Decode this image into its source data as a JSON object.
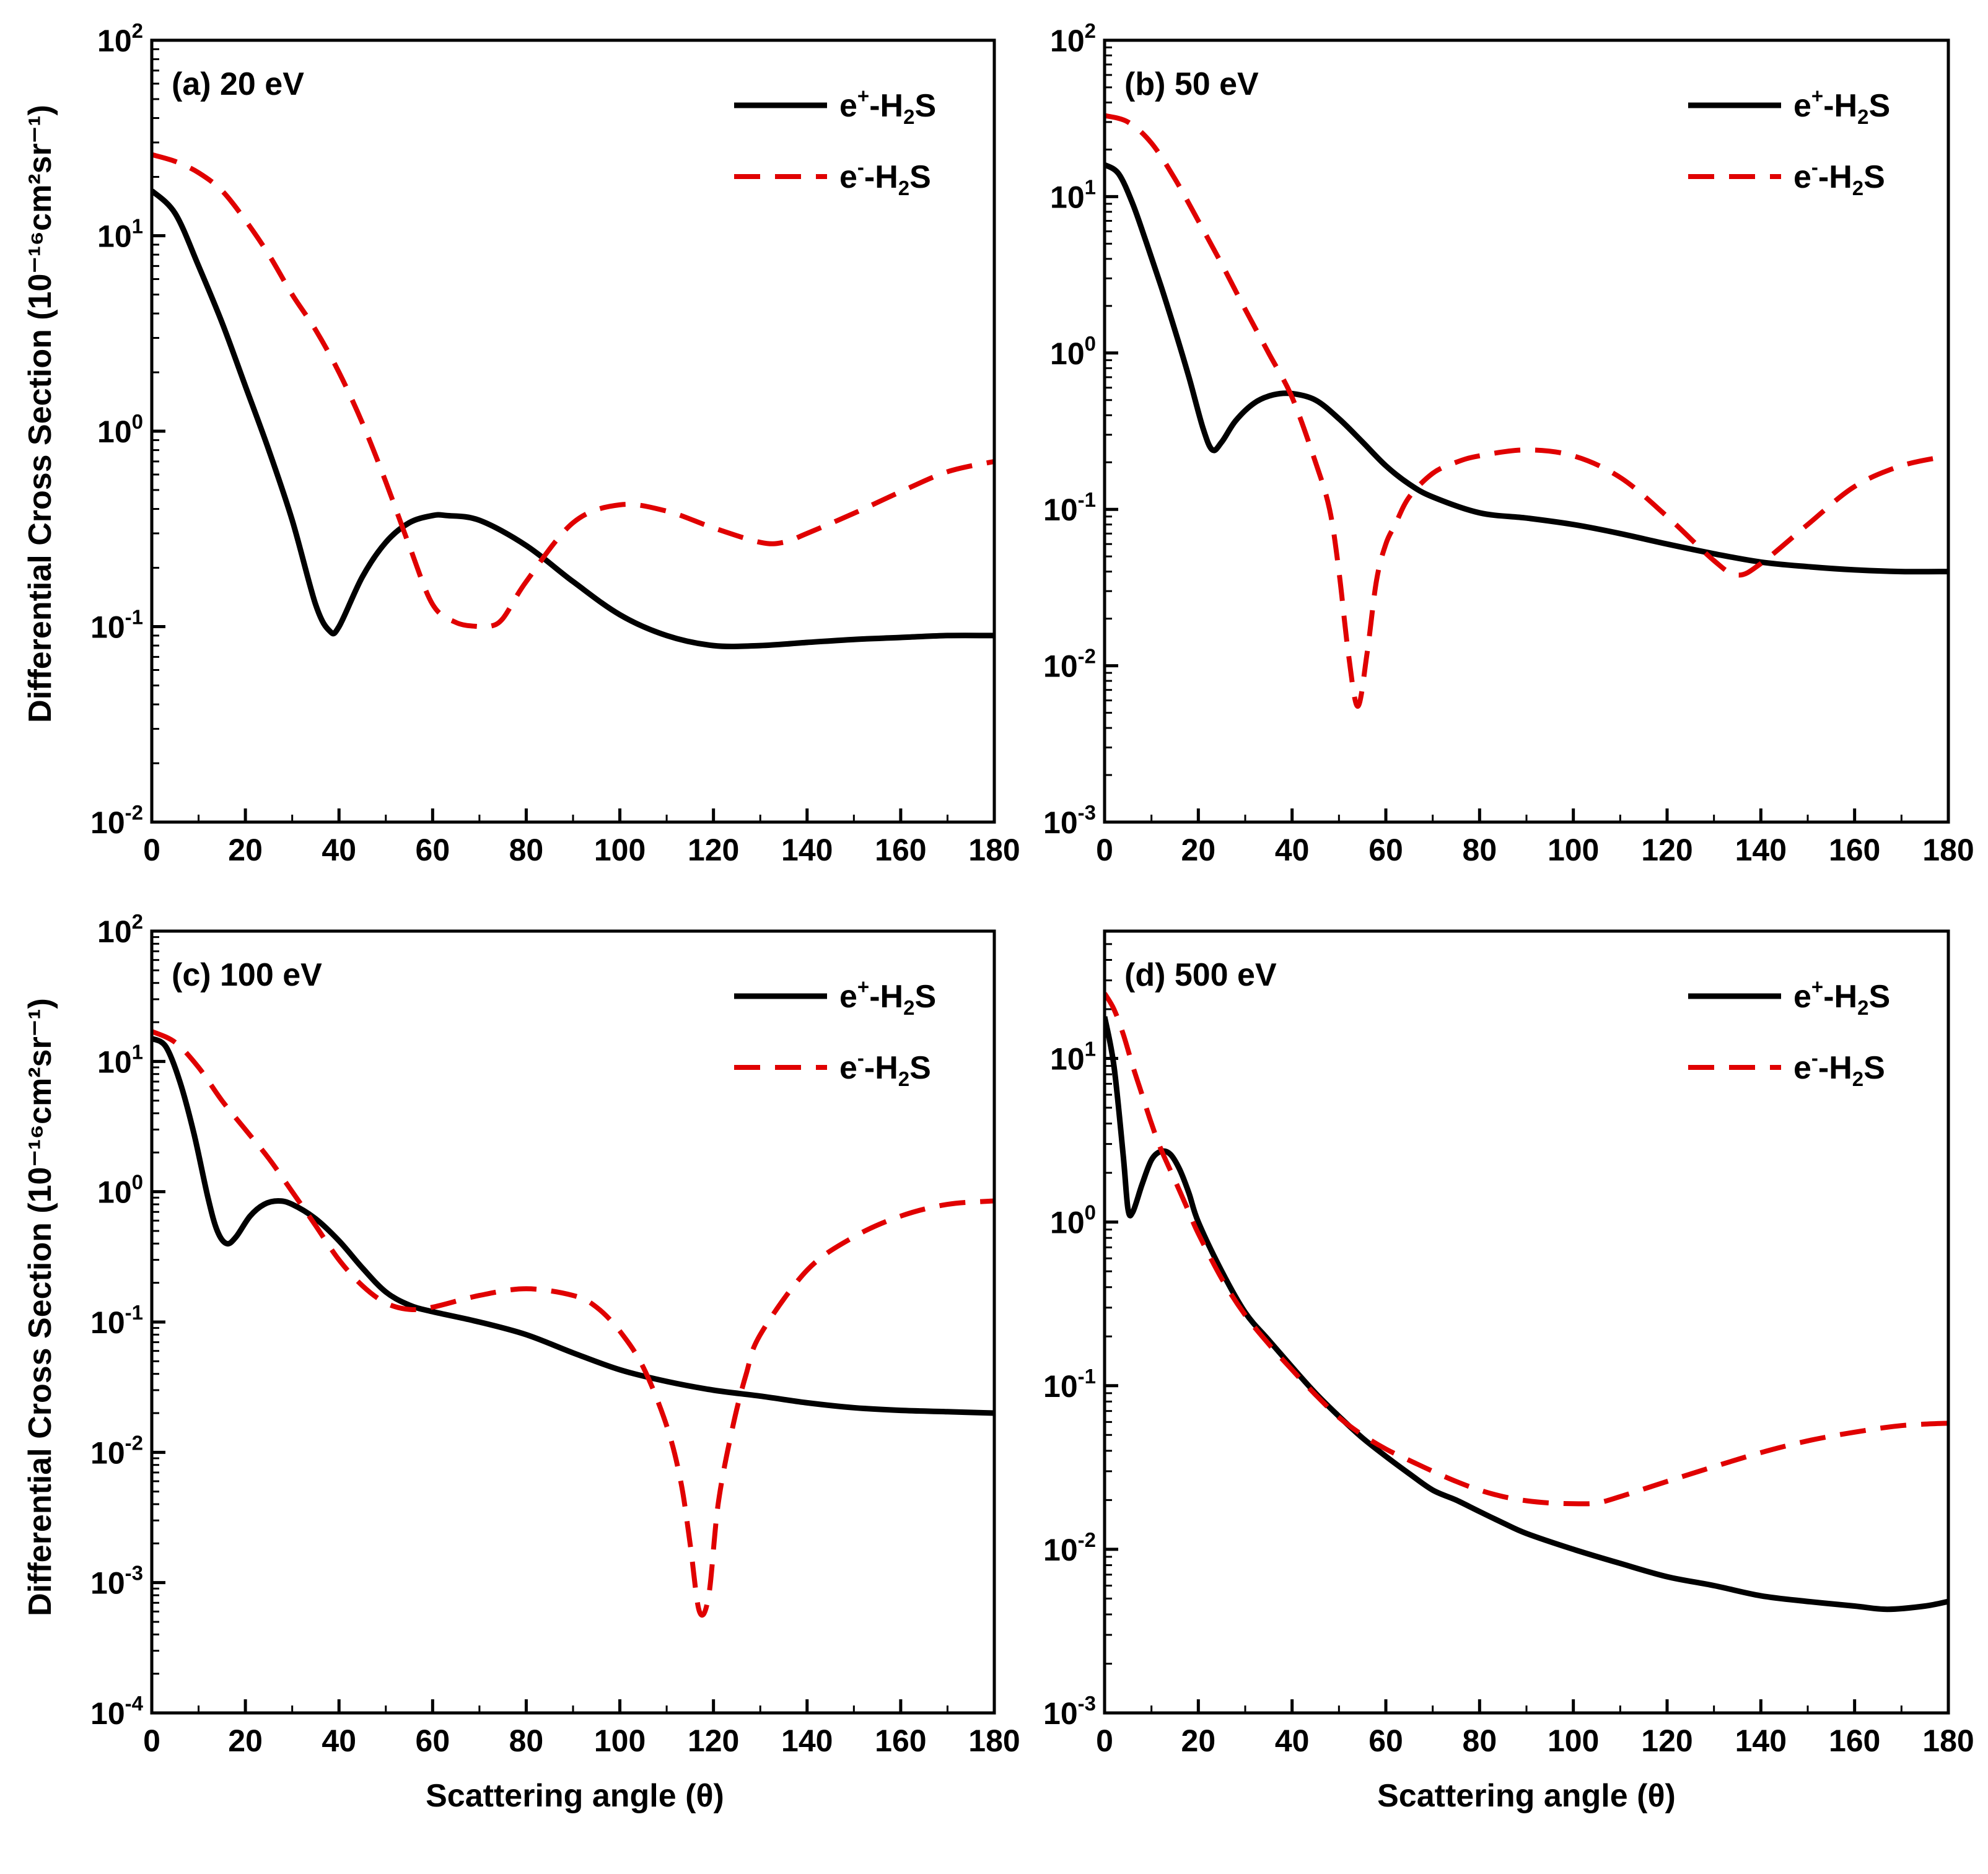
{
  "figure": {
    "x_axis_title": "Scattering angle (θ)",
    "y_axis_title": "Differential Cross Section (10⁻¹⁶cm²sr⁻¹)"
  },
  "chart_data": [
    {
      "type": "line",
      "label": "(a) 20 eV",
      "xlim": [
        0,
        180
      ],
      "x_ticks": [
        0,
        20,
        40,
        60,
        80,
        100,
        120,
        140,
        160,
        180
      ],
      "y_scale": "log",
      "ylim": [
        0.01,
        100
      ],
      "y_ticks": [
        {
          "base": "10",
          "exp": "-2"
        },
        {
          "base": "10",
          "exp": "-1"
        },
        {
          "base": "10",
          "exp": "0"
        },
        {
          "base": "10",
          "exp": "1"
        },
        {
          "base": "10",
          "exp": "2"
        }
      ],
      "legend_position": "top-right",
      "series": [
        {
          "name": "e+-H2S",
          "legend": {
            "pre": "e",
            "charge": "+",
            "mid": "-H",
            "sub": "2",
            "post": "S"
          },
          "color": "#000000",
          "style": "solid",
          "x": [
            0,
            5,
            10,
            15,
            20,
            25,
            30,
            35,
            38,
            40,
            45,
            50,
            55,
            60,
            63,
            70,
            80,
            90,
            100,
            110,
            120,
            130,
            140,
            150,
            160,
            170,
            180
          ],
          "y": [
            17,
            13,
            7,
            3.6,
            1.7,
            0.8,
            0.35,
            0.13,
            0.095,
            0.1,
            0.18,
            0.27,
            0.34,
            0.37,
            0.37,
            0.35,
            0.26,
            0.17,
            0.115,
            0.09,
            0.08,
            0.08,
            0.083,
            0.086,
            0.088,
            0.09,
            0.09
          ]
        },
        {
          "name": "e--H2S",
          "legend": {
            "pre": "e",
            "charge": "-",
            "mid": "-H",
            "sub": "2",
            "post": "S"
          },
          "color": "#e00000",
          "style": "dashed",
          "x": [
            0,
            5,
            10,
            15,
            20,
            25,
            30,
            35,
            40,
            45,
            50,
            55,
            60,
            65,
            70,
            72,
            75,
            80,
            90,
            100,
            110,
            120,
            130,
            135,
            140,
            150,
            160,
            170,
            180
          ],
          "y": [
            26,
            24,
            21,
            17,
            12,
            8,
            5,
            3.3,
            2,
            1.1,
            0.55,
            0.26,
            0.13,
            0.105,
            0.1,
            0.1,
            0.11,
            0.17,
            0.34,
            0.42,
            0.39,
            0.32,
            0.27,
            0.27,
            0.3,
            0.38,
            0.49,
            0.62,
            0.7
          ]
        }
      ]
    },
    {
      "type": "line",
      "label": "(b) 50 eV",
      "xlim": [
        0,
        180
      ],
      "x_ticks": [
        0,
        20,
        40,
        60,
        80,
        100,
        120,
        140,
        160,
        180
      ],
      "y_scale": "log",
      "ylim": [
        0.001,
        100
      ],
      "y_ticks": [
        {
          "base": "10",
          "exp": "-3"
        },
        {
          "base": "10",
          "exp": "-2"
        },
        {
          "base": "10",
          "exp": "-1"
        },
        {
          "base": "10",
          "exp": "0"
        },
        {
          "base": "10",
          "exp": "1"
        },
        {
          "base": "10",
          "exp": "2"
        }
      ],
      "legend_position": "top-right",
      "series": [
        {
          "name": "e+-H2S",
          "legend": {
            "pre": "e",
            "charge": "+",
            "mid": "-H",
            "sub": "2",
            "post": "S"
          },
          "color": "#000000",
          "style": "solid",
          "x": [
            0,
            3,
            6,
            9,
            12,
            15,
            18,
            21,
            23,
            25,
            28,
            32,
            36,
            40,
            45,
            50,
            55,
            60,
            65,
            70,
            80,
            90,
            100,
            110,
            120,
            130,
            140,
            150,
            160,
            170,
            180
          ],
          "y": [
            16,
            14,
            9,
            5,
            2.7,
            1.4,
            0.7,
            0.33,
            0.24,
            0.27,
            0.37,
            0.48,
            0.54,
            0.55,
            0.5,
            0.38,
            0.27,
            0.19,
            0.145,
            0.12,
            0.095,
            0.088,
            0.08,
            0.07,
            0.06,
            0.052,
            0.046,
            0.043,
            0.041,
            0.04,
            0.04
          ]
        },
        {
          "name": "e--H2S",
          "legend": {
            "pre": "e",
            "charge": "-",
            "mid": "-H",
            "sub": "2",
            "post": "S"
          },
          "color": "#e00000",
          "style": "dashed",
          "x": [
            0,
            5,
            10,
            15,
            20,
            25,
            30,
            35,
            40,
            45,
            48,
            50,
            52,
            54,
            56,
            58,
            60,
            62,
            65,
            70,
            75,
            80,
            90,
            100,
            110,
            120,
            130,
            135,
            140,
            150,
            160,
            170,
            180
          ],
          "y": [
            33,
            30,
            22,
            13,
            7,
            3.7,
            1.9,
            1.0,
            0.52,
            0.2,
            0.1,
            0.04,
            0.012,
            0.0055,
            0.012,
            0.035,
            0.06,
            0.08,
            0.12,
            0.17,
            0.2,
            0.22,
            0.24,
            0.22,
            0.16,
            0.09,
            0.047,
            0.038,
            0.045,
            0.08,
            0.14,
            0.19,
            0.22
          ]
        }
      ]
    },
    {
      "type": "line",
      "label": "(c) 100 eV",
      "xlim": [
        0,
        180
      ],
      "x_ticks": [
        0,
        20,
        40,
        60,
        80,
        100,
        120,
        140,
        160,
        180
      ],
      "y_scale": "log",
      "ylim": [
        0.0001,
        100
      ],
      "y_ticks": [
        {
          "base": "10",
          "exp": "-4"
        },
        {
          "base": "10",
          "exp": "-3"
        },
        {
          "base": "10",
          "exp": "-2"
        },
        {
          "base": "10",
          "exp": "-1"
        },
        {
          "base": "10",
          "exp": "0"
        },
        {
          "base": "10",
          "exp": "1"
        },
        {
          "base": "10",
          "exp": "2"
        }
      ],
      "legend_position": "top-right",
      "series": [
        {
          "name": "e+-H2S",
          "legend": {
            "pre": "e",
            "charge": "+",
            "mid": "-H",
            "sub": "2",
            "post": "S"
          },
          "color": "#000000",
          "style": "solid",
          "x": [
            0,
            3,
            6,
            9,
            12,
            14,
            16,
            18,
            21,
            24,
            27,
            30,
            35,
            40,
            45,
            50,
            55,
            60,
            70,
            80,
            90,
            100,
            110,
            120,
            130,
            140,
            150,
            160,
            170,
            180
          ],
          "y": [
            15,
            13,
            7,
            2.8,
            0.9,
            0.5,
            0.4,
            0.45,
            0.65,
            0.8,
            0.85,
            0.8,
            0.62,
            0.42,
            0.26,
            0.17,
            0.135,
            0.12,
            0.1,
            0.08,
            0.058,
            0.043,
            0.035,
            0.03,
            0.027,
            0.024,
            0.022,
            0.021,
            0.0205,
            0.02
          ]
        },
        {
          "name": "e--H2S",
          "legend": {
            "pre": "e",
            "charge": "-",
            "mid": "-H",
            "sub": "2",
            "post": "S"
          },
          "color": "#e00000",
          "style": "dashed",
          "x": [
            0,
            5,
            10,
            15,
            20,
            25,
            30,
            35,
            40,
            45,
            50,
            55,
            60,
            70,
            80,
            90,
            95,
            100,
            105,
            110,
            113,
            115,
            117,
            119,
            121,
            124,
            127,
            130,
            140,
            150,
            160,
            170,
            180
          ],
          "y": [
            17,
            14,
            9,
            5,
            3,
            1.8,
            1.0,
            0.55,
            0.3,
            0.19,
            0.14,
            0.125,
            0.13,
            0.16,
            0.18,
            0.16,
            0.13,
            0.085,
            0.045,
            0.016,
            0.006,
            0.002,
            0.0006,
            0.0008,
            0.004,
            0.015,
            0.04,
            0.08,
            0.25,
            0.45,
            0.65,
            0.8,
            0.85
          ]
        }
      ]
    },
    {
      "type": "line",
      "label": "(d) 500 eV",
      "xlim": [
        0,
        180
      ],
      "x_ticks": [
        0,
        20,
        40,
        60,
        80,
        100,
        120,
        140,
        160,
        180
      ],
      "y_scale": "log",
      "ylim": [
        0.001,
        60
      ],
      "y_ticks": [
        {
          "base": "10",
          "exp": "-3"
        },
        {
          "base": "10",
          "exp": "-2"
        },
        {
          "base": "10",
          "exp": "-1"
        },
        {
          "base": "10",
          "exp": "0"
        },
        {
          "base": "10",
          "exp": "1"
        }
      ],
      "legend_position": "top-right",
      "series": [
        {
          "name": "e+-H2S",
          "legend": {
            "pre": "e",
            "charge": "+",
            "mid": "-H",
            "sub": "2",
            "post": "S"
          },
          "color": "#000000",
          "style": "solid",
          "x": [
            0,
            2,
            4,
            5,
            6,
            8,
            10,
            12,
            14,
            16,
            18,
            20,
            25,
            30,
            35,
            40,
            45,
            50,
            55,
            60,
            65,
            70,
            75,
            80,
            85,
            90,
            100,
            110,
            120,
            130,
            140,
            150,
            160,
            167,
            175,
            180
          ],
          "y": [
            18,
            9,
            2.5,
            1.2,
            1.15,
            1.7,
            2.4,
            2.7,
            2.6,
            2.1,
            1.5,
            1.0,
            0.5,
            0.28,
            0.19,
            0.13,
            0.09,
            0.065,
            0.048,
            0.037,
            0.029,
            0.023,
            0.02,
            0.017,
            0.0145,
            0.0125,
            0.01,
            0.0082,
            0.0068,
            0.006,
            0.0052,
            0.0048,
            0.0045,
            0.0043,
            0.0045,
            0.0048
          ]
        },
        {
          "name": "e--H2S",
          "legend": {
            "pre": "e",
            "charge": "-",
            "mid": "-H",
            "sub": "2",
            "post": "S"
          },
          "color": "#e00000",
          "style": "dashed",
          "x": [
            0,
            2,
            4,
            6,
            8,
            10,
            12,
            15,
            18,
            20,
            25,
            30,
            35,
            40,
            45,
            50,
            55,
            60,
            65,
            70,
            75,
            80,
            85,
            90,
            95,
            100,
            105,
            110,
            120,
            130,
            140,
            150,
            160,
            170,
            180
          ],
          "y": [
            25,
            20,
            14,
            9,
            6,
            4,
            2.8,
            1.8,
            1.15,
            0.85,
            0.45,
            0.27,
            0.18,
            0.125,
            0.088,
            0.064,
            0.05,
            0.041,
            0.035,
            0.03,
            0.026,
            0.023,
            0.021,
            0.0198,
            0.0192,
            0.019,
            0.0192,
            0.021,
            0.026,
            0.032,
            0.039,
            0.046,
            0.052,
            0.057,
            0.059
          ]
        }
      ]
    }
  ]
}
